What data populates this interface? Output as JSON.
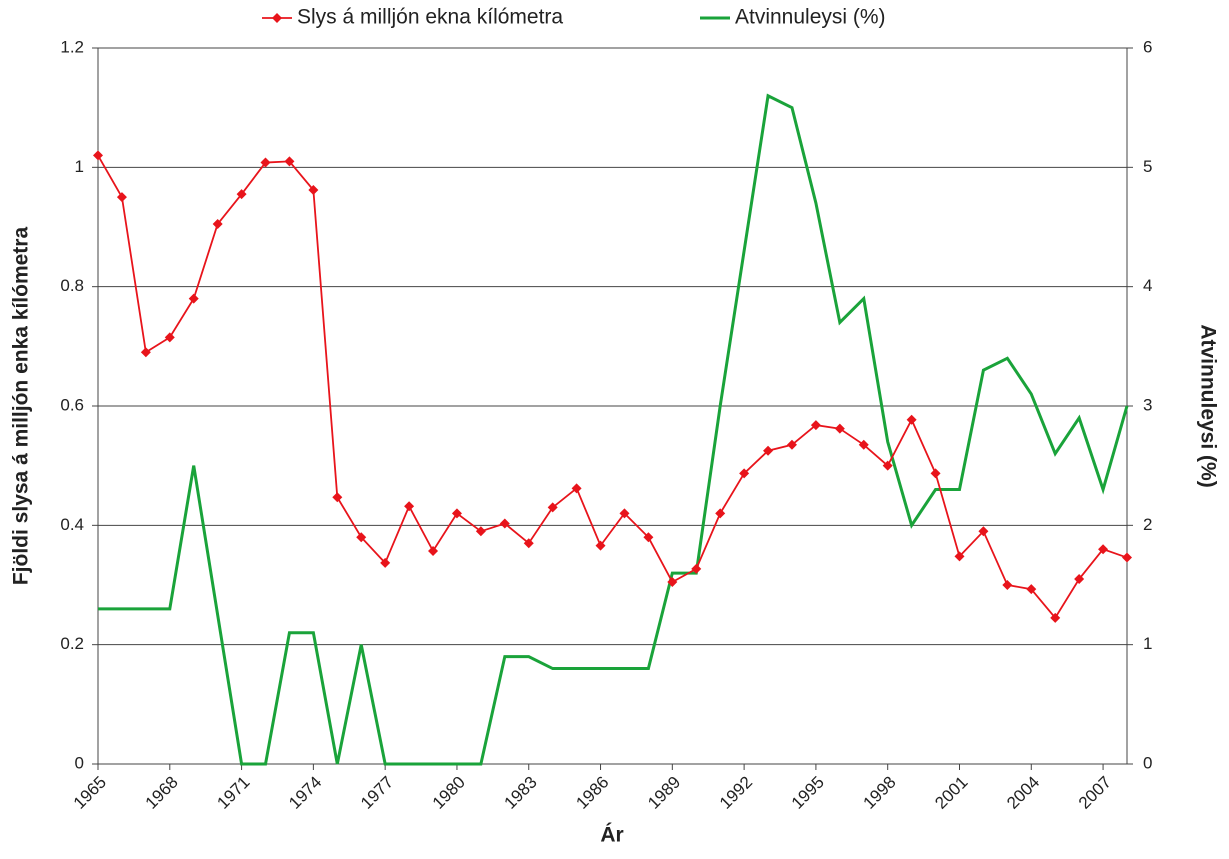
{
  "chart_data": {
    "type": "line",
    "x": [
      1965,
      1966,
      1967,
      1968,
      1969,
      1970,
      1971,
      1972,
      1973,
      1974,
      1975,
      1976,
      1977,
      1978,
      1979,
      1980,
      1981,
      1982,
      1983,
      1984,
      1985,
      1986,
      1987,
      1988,
      1989,
      1990,
      1991,
      1992,
      1993,
      1994,
      1995,
      1996,
      1997,
      1998,
      1999,
      2000,
      2001,
      2002,
      2003,
      2004,
      2005,
      2006,
      2007,
      2008
    ],
    "series": [
      {
        "name": "Slys á milljón ekna kílómetra",
        "color": "#e8141b",
        "marker": "diamond",
        "values": [
          1.02,
          0.95,
          0.69,
          0.715,
          0.78,
          0.905,
          0.955,
          1.008,
          1.01,
          0.962,
          0.447,
          0.38,
          0.337,
          0.432,
          0.357,
          0.42,
          0.39,
          0.403,
          0.37,
          0.43,
          0.462,
          0.366,
          0.42,
          0.38,
          0.305,
          0.327,
          0.42,
          0.487,
          0.525,
          0.535,
          0.568,
          0.562,
          0.535,
          0.5,
          0.577,
          0.487,
          0.348,
          0.39,
          0.3,
          0.293,
          0.245,
          0.31,
          0.36,
          0.346
        ]
      },
      {
        "name": "Atvinnuleysi (%)",
        "color": "#1aa33a",
        "axis": "y2",
        "values": [
          1.3,
          1.3,
          1.3,
          1.3,
          2.5,
          1.25,
          0,
          0,
          1.1,
          1.1,
          0,
          1.0,
          0,
          0,
          0,
          0,
          0,
          0.9,
          0.9,
          0.8,
          0.8,
          0.8,
          0.8,
          0.8,
          1.6,
          1.6,
          3.0,
          4.3,
          5.6,
          5.5,
          4.7,
          3.7,
          3.9,
          2.7,
          2.0,
          2.3,
          2.3,
          3.3,
          3.4,
          3.1,
          2.6,
          2.9,
          2.3,
          3.0
        ]
      }
    ],
    "xlim": [
      1965,
      2008
    ],
    "xticks": [
      1965,
      1968,
      1971,
      1974,
      1977,
      1980,
      1983,
      1986,
      1989,
      1992,
      1995,
      1998,
      2001,
      2004,
      2007
    ],
    "ylim": [
      0,
      1.2
    ],
    "yticks": [
      0,
      0.2,
      0.4,
      0.6,
      0.8,
      1,
      1.2
    ],
    "y2lim": [
      0,
      6
    ],
    "y2ticks": [
      0,
      1,
      2,
      3,
      4,
      5,
      6
    ],
    "xlabel": "Ár",
    "ylabel": "Fjöldi slysa á milljón enka kílómetra",
    "y2label": "Atvinnuleysi (%)",
    "grid": true,
    "legend": "top"
  }
}
